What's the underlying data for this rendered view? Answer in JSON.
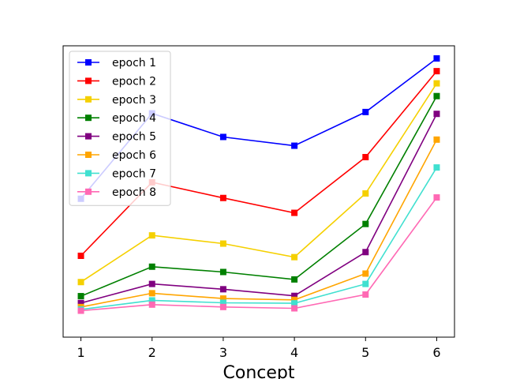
{
  "chart_data": {
    "type": "line",
    "title": "",
    "xlabel": "Concept",
    "ylabel": "",
    "x": [
      1,
      2,
      3,
      4,
      5,
      6
    ],
    "xlim": [
      0.75,
      6.25
    ],
    "ylim": [
      0,
      1
    ],
    "y_ticks_visible": false,
    "grid": false,
    "legend_position": "upper-left",
    "marker": "square",
    "series": [
      {
        "name": "epoch 1",
        "color": "#0000ff",
        "values": [
          0.471,
          0.793,
          0.704,
          0.671,
          0.798,
          1.0
        ]
      },
      {
        "name": "epoch 2",
        "color": "#ff0000",
        "values": [
          0.256,
          0.533,
          0.474,
          0.418,
          0.628,
          0.952
        ]
      },
      {
        "name": "epoch 3",
        "color": "#f5d000",
        "values": [
          0.157,
          0.333,
          0.302,
          0.251,
          0.491,
          0.906
        ]
      },
      {
        "name": "epoch 4",
        "color": "#008000",
        "values": [
          0.104,
          0.215,
          0.195,
          0.167,
          0.376,
          0.858
        ]
      },
      {
        "name": "epoch 5",
        "color": "#800080",
        "values": [
          0.078,
          0.15,
          0.13,
          0.105,
          0.27,
          0.791
        ]
      },
      {
        "name": "epoch 6",
        "color": "#ffa500",
        "values": [
          0.063,
          0.115,
          0.095,
          0.09,
          0.189,
          0.694
        ]
      },
      {
        "name": "epoch 7",
        "color": "#40e0d0",
        "values": [
          0.054,
          0.088,
          0.079,
          0.077,
          0.15,
          0.589
        ]
      },
      {
        "name": "epoch 8",
        "color": "#ff69b4",
        "values": [
          0.049,
          0.072,
          0.063,
          0.058,
          0.11,
          0.476
        ]
      }
    ]
  }
}
